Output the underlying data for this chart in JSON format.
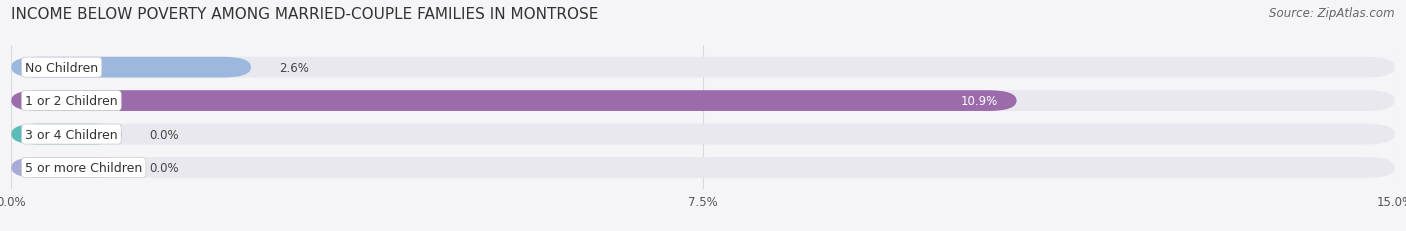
{
  "title": "INCOME BELOW POVERTY AMONG MARRIED-COUPLE FAMILIES IN MONTROSE",
  "source": "Source: ZipAtlas.com",
  "categories": [
    "No Children",
    "1 or 2 Children",
    "3 or 4 Children",
    "5 or more Children"
  ],
  "values": [
    2.6,
    10.9,
    0.0,
    0.0
  ],
  "bar_colors": [
    "#9cb8df",
    "#9b6bac",
    "#5bbcb8",
    "#a8aad8"
  ],
  "track_color": "#e8e8ee",
  "xlim": [
    0,
    15.0
  ],
  "xticks": [
    0.0,
    7.5,
    15.0
  ],
  "xticklabels": [
    "0.0%",
    "7.5%",
    "15.0%"
  ],
  "title_fontsize": 11,
  "source_fontsize": 8.5,
  "label_fontsize": 9,
  "value_fontsize": 8.5,
  "background_color": "#f5f5f8",
  "bar_height": 0.62,
  "grid_color": "#d8d8e0",
  "label_box_bg": "#ffffff",
  "zero_bar_width": 1.2
}
